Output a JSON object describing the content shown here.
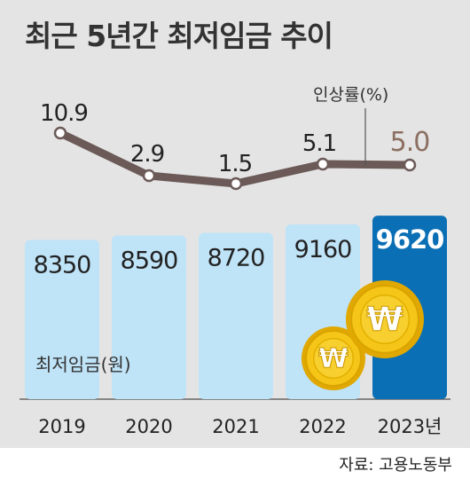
{
  "title": "최근 5년간 최저임금 추이",
  "source": "자료: 고용노동부",
  "colors": {
    "background": "#e4e4e4",
    "bar": "#bfe3f7",
    "bar_highlight": "#0b6fb5",
    "line": "#6b5a57",
    "text": "#333333",
    "coin": "#f5c518"
  },
  "chart_data": {
    "type": "bar",
    "categories": [
      "2019",
      "2020",
      "2021",
      "2022",
      "2023년"
    ],
    "series": [
      {
        "name": "최저임금(원)",
        "type": "bar",
        "values": [
          8350,
          8590,
          8720,
          9160,
          9620
        ],
        "highlight_index": 4
      },
      {
        "name": "인상률(%)",
        "type": "line",
        "values": [
          "10.9",
          "2.9",
          "1.5",
          "5.1",
          "5.0"
        ]
      }
    ],
    "ylim": [
      0,
      10000
    ]
  },
  "coins": [
    {
      "symbol": "₩",
      "icon": "won-coin-icon"
    },
    {
      "symbol": "₩",
      "icon": "won-coin-icon"
    }
  ]
}
